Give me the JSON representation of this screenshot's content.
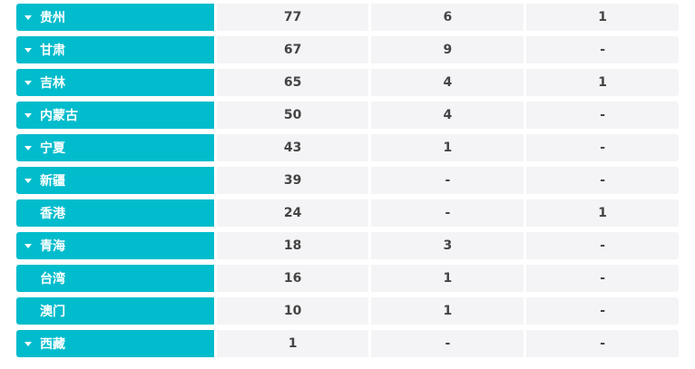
{
  "rows": [
    {
      "region": "贵州",
      "expandable": true,
      "col1": "77",
      "col2": "6",
      "col3": "1"
    },
    {
      "region": "甘肃",
      "expandable": true,
      "col1": "67",
      "col2": "9",
      "col3": "-"
    },
    {
      "region": "吉林",
      "expandable": true,
      "col1": "65",
      "col2": "4",
      "col3": "1"
    },
    {
      "region": "内蒙古",
      "expandable": true,
      "col1": "50",
      "col2": "4",
      "col3": "-"
    },
    {
      "region": "宁夏",
      "expandable": true,
      "col1": "43",
      "col2": "1",
      "col3": "-"
    },
    {
      "region": "新疆",
      "expandable": true,
      "col1": "39",
      "col2": "-",
      "col3": "-"
    },
    {
      "region": "香港",
      "expandable": false,
      "col1": "24",
      "col2": "-",
      "col3": "1"
    },
    {
      "region": "青海",
      "expandable": true,
      "col1": "18",
      "col2": "3",
      "col3": "-"
    },
    {
      "region": "台湾",
      "expandable": false,
      "col1": "16",
      "col2": "1",
      "col3": "-"
    },
    {
      "region": "澳门",
      "expandable": false,
      "col1": "10",
      "col2": "1",
      "col3": "-"
    },
    {
      "region": "西藏",
      "expandable": true,
      "col1": "1",
      "col2": "-",
      "col3": "-"
    }
  ],
  "colors": {
    "region_bg": "#00bccc",
    "cell_bg": "#f4f4f6",
    "text": "#444444"
  },
  "icons": {
    "expand": "caret-down-icon"
  }
}
